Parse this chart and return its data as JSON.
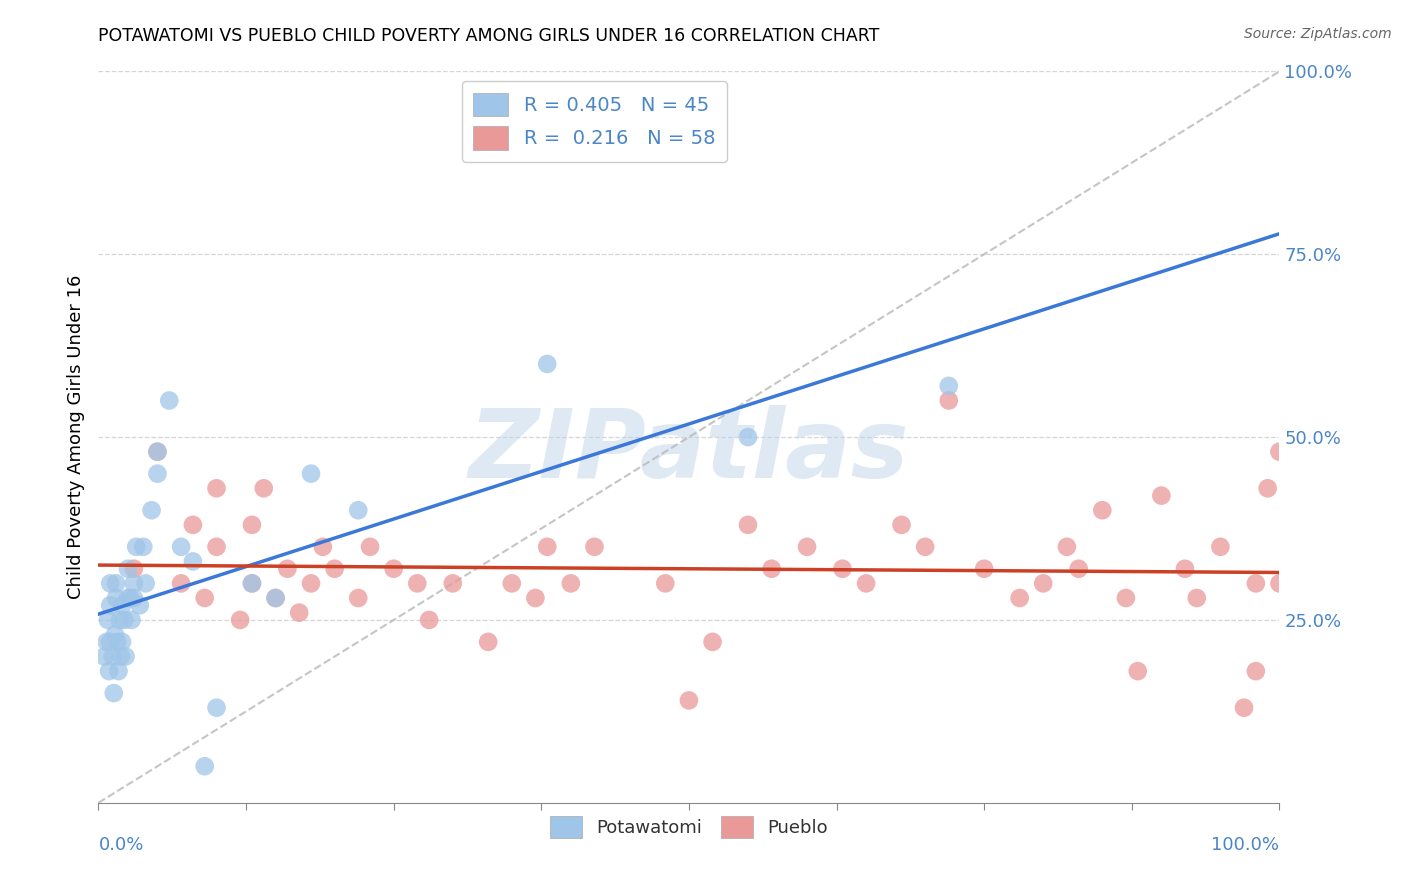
{
  "title": "POTAWATOMI VS PUEBLO CHILD POVERTY AMONG GIRLS UNDER 16 CORRELATION CHART",
  "source": "Source: ZipAtlas.com",
  "ylabel": "Child Poverty Among Girls Under 16",
  "watermark": "ZIPatlas",
  "xlim": [
    0,
    1
  ],
  "ylim": [
    0,
    1
  ],
  "xticks": [
    0,
    0.125,
    0.25,
    0.375,
    0.5,
    0.625,
    0.75,
    0.875,
    1.0
  ],
  "yticks": [
    0.25,
    0.5,
    0.75,
    1.0
  ],
  "xticklabels_outer": [
    "0.0%",
    "100.0%"
  ],
  "yticklabels": [
    "25.0%",
    "50.0%",
    "75.0%",
    "100.0%"
  ],
  "legend_text1": "R = 0.405   N = 45",
  "legend_text2": "R =  0.216   N = 58",
  "blue_color": "#9fc5e8",
  "pink_color": "#ea9999",
  "line_blue": "#3c78d8",
  "line_pink": "#cc4125",
  "line_dash_color": "#b7b7b7",
  "potawatomi_x": [
    0.005,
    0.007,
    0.008,
    0.009,
    0.01,
    0.01,
    0.01,
    0.012,
    0.013,
    0.014,
    0.015,
    0.015,
    0.016,
    0.017,
    0.018,
    0.019,
    0.02,
    0.02,
    0.022,
    0.023,
    0.025,
    0.025,
    0.027,
    0.028,
    0.03,
    0.03,
    0.032,
    0.035,
    0.038,
    0.04,
    0.045,
    0.05,
    0.05,
    0.06,
    0.07,
    0.08,
    0.09,
    0.1,
    0.13,
    0.15,
    0.18,
    0.22,
    0.38,
    0.55,
    0.72
  ],
  "potawatomi_y": [
    0.2,
    0.22,
    0.25,
    0.18,
    0.22,
    0.27,
    0.3,
    0.2,
    0.15,
    0.23,
    0.28,
    0.3,
    0.22,
    0.18,
    0.25,
    0.2,
    0.22,
    0.27,
    0.25,
    0.2,
    0.28,
    0.32,
    0.28,
    0.25,
    0.3,
    0.28,
    0.35,
    0.27,
    0.35,
    0.3,
    0.4,
    0.45,
    0.48,
    0.55,
    0.35,
    0.33,
    0.05,
    0.13,
    0.3,
    0.28,
    0.45,
    0.4,
    0.6,
    0.5,
    0.57
  ],
  "pueblo_x": [
    0.03,
    0.05,
    0.07,
    0.08,
    0.09,
    0.1,
    0.1,
    0.12,
    0.13,
    0.13,
    0.14,
    0.15,
    0.16,
    0.17,
    0.18,
    0.19,
    0.2,
    0.22,
    0.23,
    0.25,
    0.27,
    0.28,
    0.3,
    0.33,
    0.35,
    0.37,
    0.38,
    0.4,
    0.42,
    0.48,
    0.5,
    0.52,
    0.55,
    0.57,
    0.6,
    0.63,
    0.65,
    0.68,
    0.7,
    0.72,
    0.75,
    0.78,
    0.8,
    0.82,
    0.83,
    0.85,
    0.87,
    0.88,
    0.9,
    0.92,
    0.93,
    0.95,
    0.97,
    0.98,
    0.98,
    0.99,
    1.0,
    1.0
  ],
  "pueblo_y": [
    0.32,
    0.48,
    0.3,
    0.38,
    0.28,
    0.35,
    0.43,
    0.25,
    0.3,
    0.38,
    0.43,
    0.28,
    0.32,
    0.26,
    0.3,
    0.35,
    0.32,
    0.28,
    0.35,
    0.32,
    0.3,
    0.25,
    0.3,
    0.22,
    0.3,
    0.28,
    0.35,
    0.3,
    0.35,
    0.3,
    0.14,
    0.22,
    0.38,
    0.32,
    0.35,
    0.32,
    0.3,
    0.38,
    0.35,
    0.55,
    0.32,
    0.28,
    0.3,
    0.35,
    0.32,
    0.4,
    0.28,
    0.18,
    0.42,
    0.32,
    0.28,
    0.35,
    0.13,
    0.18,
    0.3,
    0.43,
    0.48,
    0.3
  ],
  "bg_color": "#ffffff",
  "grid_color": "#cccccc",
  "title_color": "#000000",
  "ylabel_color": "#000000",
  "tick_color": "#4a86c8"
}
